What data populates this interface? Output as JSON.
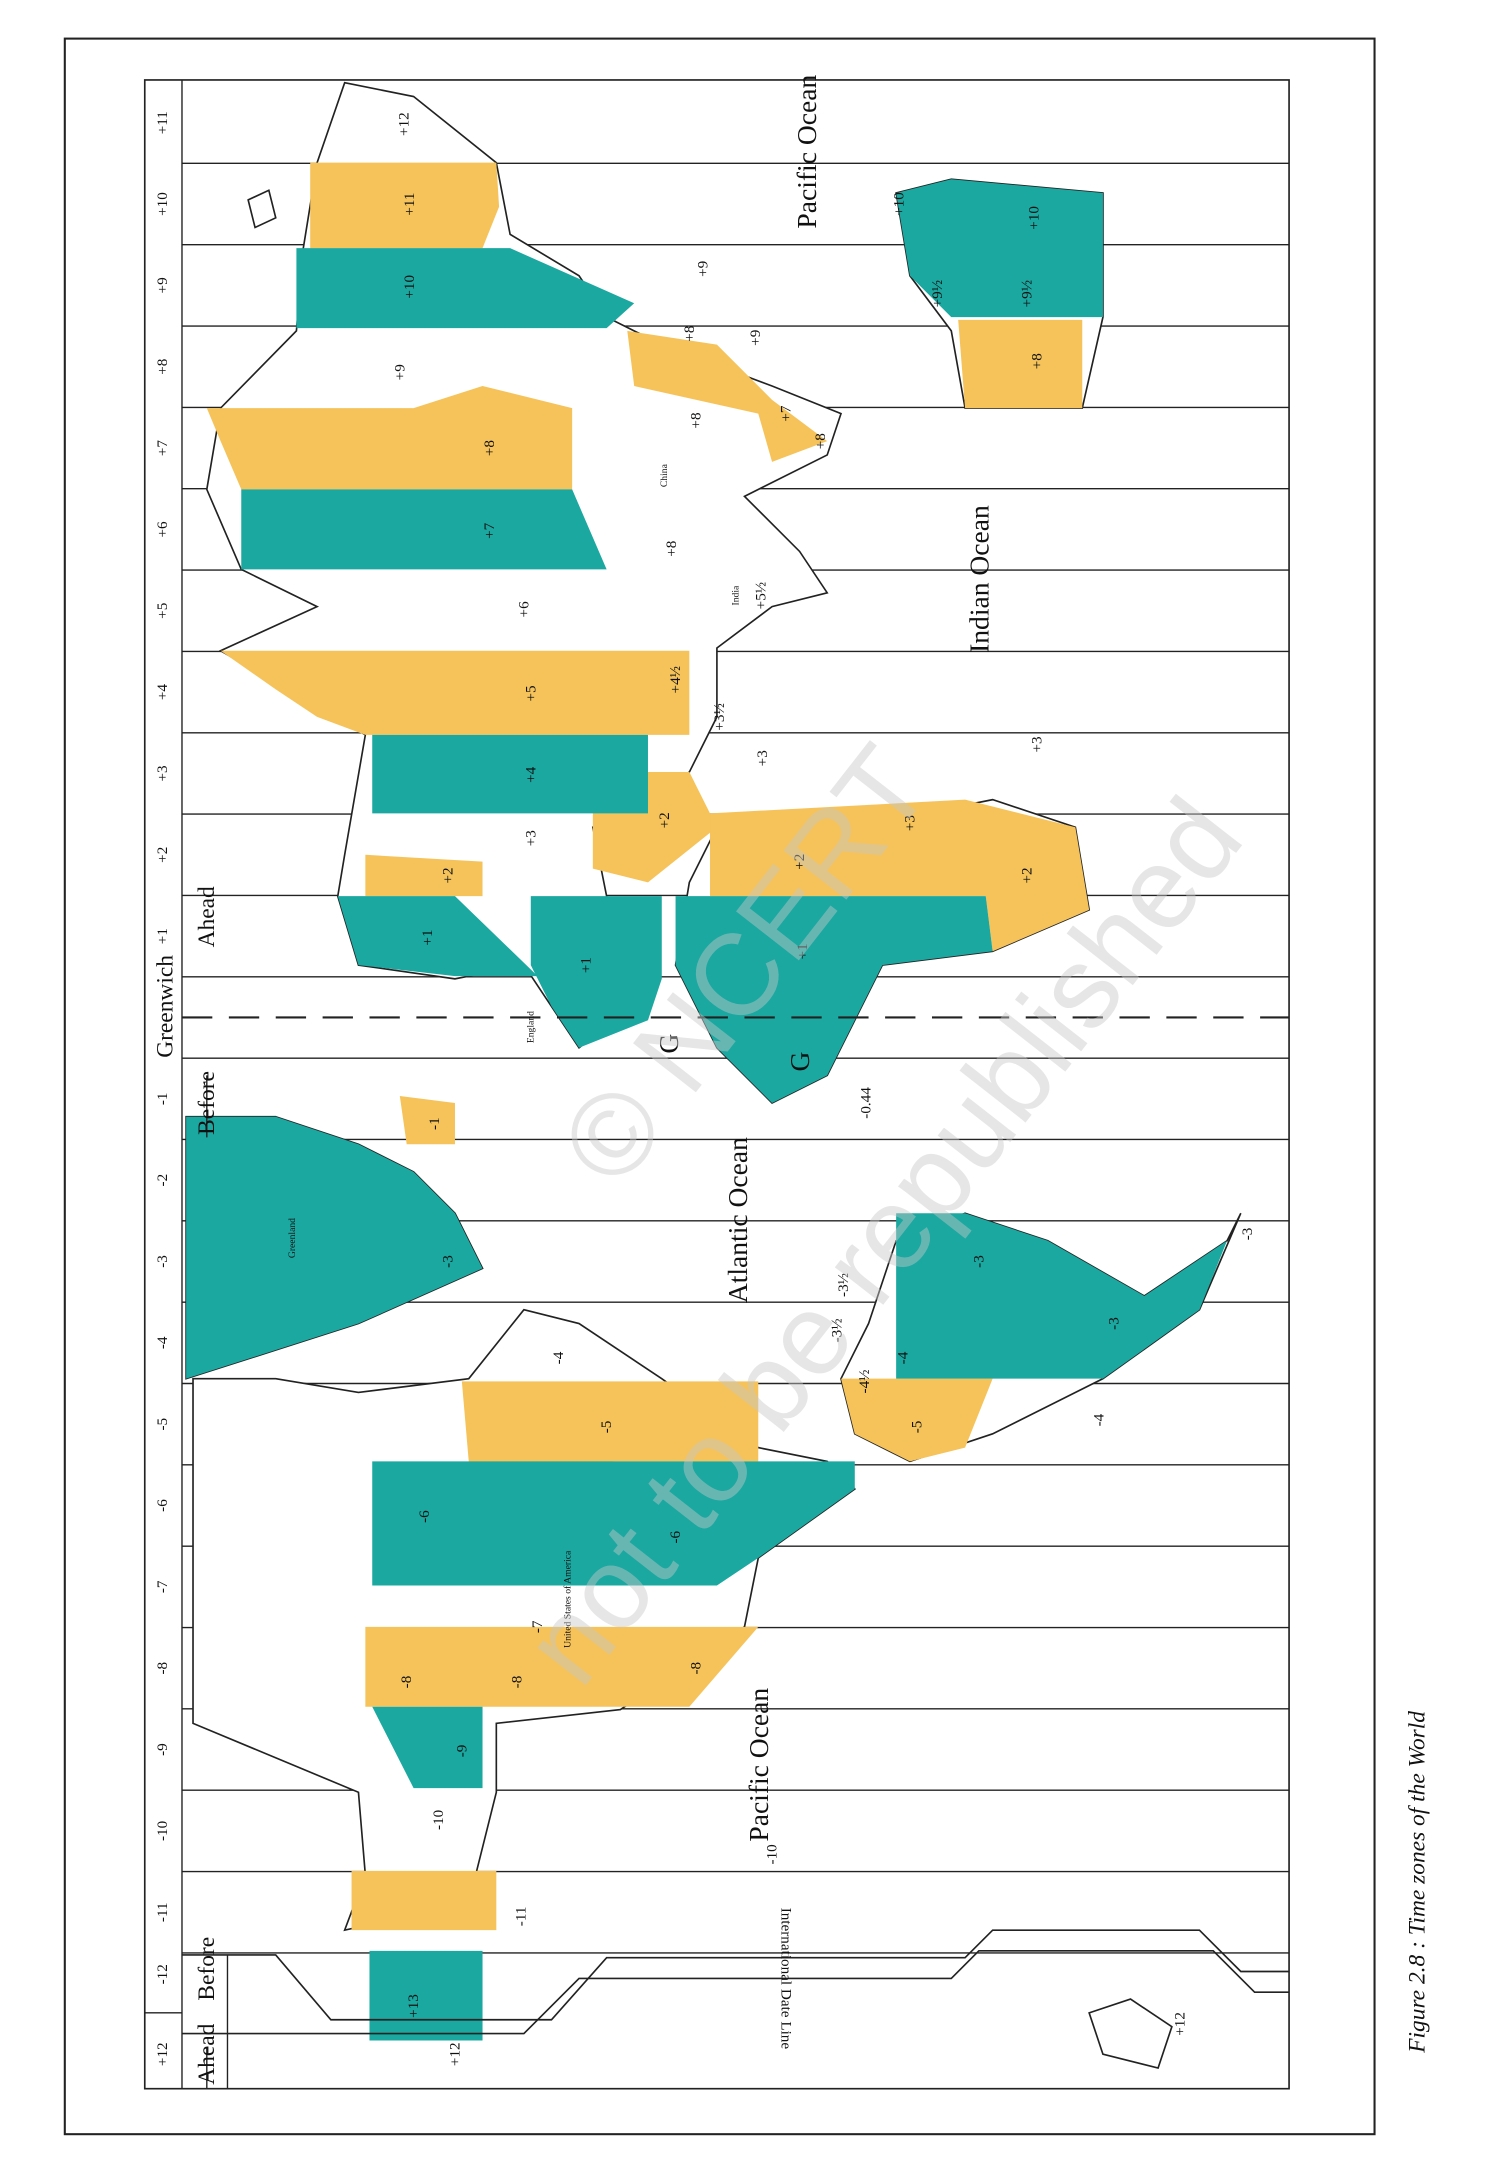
{
  "header": {
    "zones": [
      "+11",
      "+10",
      "+9",
      "+8",
      "+7",
      "+6",
      "+5",
      "+4",
      "+3",
      "+2",
      "+1",
      "-1",
      "-2",
      "-3",
      "-4",
      "-5",
      "-6",
      "-7",
      "-8",
      "-9",
      "-10",
      "-11",
      "-12",
      "+12"
    ],
    "strip_labels": [
      "Ahead",
      "Before",
      "Before",
      "Greenwich",
      "Ahead"
    ]
  },
  "map": {
    "oceans": [
      "Pacific Ocean",
      "Indian Ocean",
      "Atlantic Ocean",
      "Pacific Ocean"
    ],
    "places": [
      "Greenland",
      "China",
      "India",
      "United States of America",
      "England",
      "G",
      "G"
    ],
    "date_line": "International Date Line",
    "zone_labels": [
      "+12",
      "+11",
      "+10",
      "+9",
      "+9",
      "+10",
      "+10",
      "+9½",
      "+9½",
      "+8",
      "+8",
      "+9",
      "+8",
      "+8",
      "+7",
      "+8",
      "+7",
      "+8",
      "+6",
      "+5½",
      "+5",
      "+4½",
      "+3½",
      "+4",
      "+3",
      "+3",
      "+3",
      "+3",
      "+2",
      "+2",
      "+2",
      "+2",
      "+1",
      "+1",
      "+1",
      "-1",
      "-0.44",
      "-3",
      "-3½",
      "-3½",
      "-4",
      "-4½",
      "-4",
      "-3",
      "-3",
      "-3",
      "-4",
      "-5",
      "-5",
      "-6",
      "-6",
      "-7",
      "-8",
      "-8",
      "-8",
      "-9",
      "-10",
      "-10",
      "-11",
      "+13",
      "+12",
      "+12"
    ]
  },
  "watermark": [
    "© NCERT",
    "not to be republished"
  ],
  "caption": "Figure 2.8 : Time zones of the World"
}
